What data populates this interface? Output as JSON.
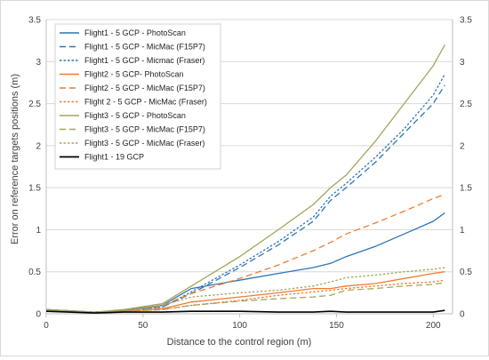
{
  "chart_data": {
    "type": "line",
    "title": "",
    "xlabel": "Distance to the control region (m)",
    "ylabel": "Error on reference targets positions (m)",
    "xlim": [
      0,
      210
    ],
    "ylim": [
      0,
      3.5
    ],
    "x_ticks": [
      "0",
      "50",
      "100",
      "150",
      "200"
    ],
    "y_ticks": [
      "0",
      "0.5",
      "1",
      "1.5",
      "2",
      "2.5",
      "3",
      "3.5"
    ],
    "secondary_y_axis": true,
    "grid": "horizontal",
    "legend_position": "top-left",
    "series": [
      {
        "name": "Flight1 - 5 GCP - PhotoScan",
        "color": "#2e75b6",
        "dash": "solid",
        "x": [
          0,
          25,
          40,
          60,
          75,
          100,
          120,
          138,
          147,
          155,
          170,
          185,
          200,
          206
        ],
        "y": [
          0.05,
          0.02,
          0.04,
          0.1,
          0.3,
          0.4,
          0.48,
          0.55,
          0.6,
          0.68,
          0.8,
          0.95,
          1.1,
          1.2
        ]
      },
      {
        "name": "Flight1 - 5 GCP - MicMac (F15P7)",
        "color": "#2e75b6",
        "dash": "long",
        "x": [
          0,
          25,
          40,
          60,
          75,
          100,
          120,
          138,
          147,
          155,
          170,
          185,
          200,
          206
        ],
        "y": [
          0.05,
          0.02,
          0.04,
          0.08,
          0.24,
          0.55,
          0.82,
          1.1,
          1.35,
          1.5,
          1.8,
          2.15,
          2.5,
          2.72
        ]
      },
      {
        "name": "Flight1 - 5 GCP - Micmac (Fraser)",
        "color": "#2e75b6",
        "dash": "short",
        "x": [
          0,
          25,
          40,
          60,
          75,
          100,
          120,
          138,
          147,
          155,
          170,
          185,
          200,
          206
        ],
        "y": [
          0.05,
          0.02,
          0.04,
          0.08,
          0.26,
          0.58,
          0.86,
          1.15,
          1.4,
          1.55,
          1.86,
          2.2,
          2.6,
          2.85
        ]
      },
      {
        "name": "Flight2 - 5 GCP- PhotoScan",
        "color": "#ed7d31",
        "dash": "solid",
        "x": [
          0,
          25,
          40,
          60,
          75,
          100,
          120,
          138,
          147,
          155,
          170,
          185,
          200,
          206
        ],
        "y": [
          0.04,
          0.02,
          0.03,
          0.06,
          0.14,
          0.2,
          0.25,
          0.3,
          0.3,
          0.33,
          0.36,
          0.42,
          0.48,
          0.5
        ]
      },
      {
        "name": "Flight2 - 5 GCP - MicMac (F15P7)",
        "color": "#ed7d31",
        "dash": "long",
        "x": [
          0,
          25,
          40,
          60,
          75,
          100,
          120,
          138,
          147,
          155,
          170,
          185,
          200,
          206
        ],
        "y": [
          0.04,
          0.02,
          0.03,
          0.1,
          0.24,
          0.42,
          0.58,
          0.75,
          0.85,
          0.95,
          1.08,
          1.22,
          1.37,
          1.42
        ]
      },
      {
        "name": "Flight 2 - 5 GCP - MicMac (Fraser)",
        "color": "#ed7d31",
        "dash": "short",
        "x": [
          0,
          25,
          40,
          60,
          75,
          100,
          120,
          138,
          147,
          155,
          170,
          185,
          200,
          206
        ],
        "y": [
          0.04,
          0.02,
          0.03,
          0.05,
          0.1,
          0.16,
          0.22,
          0.26,
          0.28,
          0.3,
          0.33,
          0.36,
          0.38,
          0.4
        ]
      },
      {
        "name": "Flight3 - 5 GCP - PhotoScan",
        "color": "#a5a55a",
        "dash": "solid",
        "x": [
          0,
          25,
          40,
          60,
          75,
          100,
          120,
          138,
          147,
          155,
          170,
          185,
          200,
          206
        ],
        "y": [
          0.05,
          0.02,
          0.05,
          0.12,
          0.33,
          0.68,
          1.0,
          1.3,
          1.5,
          1.65,
          2.05,
          2.5,
          2.95,
          3.2
        ]
      },
      {
        "name": "Flight3 - 5 GCP - MicMac (F15P7)",
        "color": "#a5a55a",
        "dash": "long",
        "x": [
          0,
          25,
          40,
          60,
          75,
          100,
          120,
          138,
          147,
          155,
          170,
          185,
          200,
          206
        ],
        "y": [
          0.04,
          0.02,
          0.03,
          0.05,
          0.1,
          0.15,
          0.18,
          0.2,
          0.22,
          0.28,
          0.3,
          0.33,
          0.35,
          0.37
        ]
      },
      {
        "name": "Flight3 - 5 GCP - MicMac (Fraser)",
        "color": "#a5a55a",
        "dash": "short",
        "x": [
          0,
          25,
          40,
          60,
          75,
          100,
          120,
          138,
          147,
          155,
          170,
          185,
          200,
          206
        ],
        "y": [
          0.04,
          0.02,
          0.04,
          0.1,
          0.2,
          0.25,
          0.28,
          0.33,
          0.38,
          0.43,
          0.46,
          0.5,
          0.53,
          0.55
        ]
      },
      {
        "name": "Flight1 - 19 GCP",
        "color": "#000000",
        "dash": "solid",
        "x": [
          0,
          25,
          40,
          60,
          75,
          100,
          120,
          138,
          147,
          155,
          170,
          185,
          200,
          206
        ],
        "y": [
          0.03,
          0.01,
          0.02,
          0.02,
          0.03,
          0.03,
          0.02,
          0.02,
          0.03,
          0.02,
          0.02,
          0.02,
          0.02,
          0.04
        ]
      }
    ]
  }
}
